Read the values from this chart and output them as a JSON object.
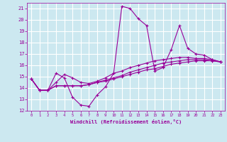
{
  "xlabel": "Windchill (Refroidissement éolien,°C)",
  "ylabel": "",
  "background_color": "#cce8f0",
  "grid_color": "#ffffff",
  "line_color": "#990099",
  "xlim": [
    -0.5,
    23.5
  ],
  "ylim": [
    12,
    21.5
  ],
  "yticks": [
    12,
    13,
    14,
    15,
    16,
    17,
    18,
    19,
    20,
    21
  ],
  "xticks": [
    0,
    1,
    2,
    3,
    4,
    5,
    6,
    7,
    8,
    9,
    10,
    11,
    12,
    13,
    14,
    15,
    16,
    17,
    18,
    19,
    20,
    21,
    22,
    23
  ],
  "series": [
    {
      "x": [
        0,
        1,
        2,
        3,
        4,
        5,
        6,
        7,
        8,
        9,
        10,
        11,
        12,
        13,
        14,
        15,
        16,
        17,
        18,
        19,
        20,
        21,
        22,
        23
      ],
      "y": [
        14.8,
        13.8,
        13.8,
        15.3,
        14.9,
        13.2,
        12.5,
        12.4,
        13.4,
        14.1,
        15.3,
        21.2,
        21.0,
        20.1,
        19.5,
        15.5,
        15.8,
        17.4,
        19.5,
        17.5,
        17.0,
        16.9,
        16.5,
        16.3
      ]
    },
    {
      "x": [
        0,
        1,
        2,
        3,
        4,
        5,
        6,
        7,
        8,
        9,
        10,
        11,
        12,
        13,
        14,
        15,
        16,
        17,
        18,
        19,
        20,
        21,
        22,
        23
      ],
      "y": [
        14.8,
        13.8,
        13.8,
        14.2,
        14.2,
        14.2,
        14.2,
        14.3,
        14.5,
        14.6,
        14.8,
        15.0,
        15.2,
        15.4,
        15.6,
        15.7,
        15.9,
        16.1,
        16.2,
        16.3,
        16.4,
        16.4,
        16.4,
        16.3
      ]
    },
    {
      "x": [
        0,
        1,
        2,
        3,
        4,
        5,
        6,
        7,
        8,
        9,
        10,
        11,
        12,
        13,
        14,
        15,
        16,
        17,
        18,
        19,
        20,
        21,
        22,
        23
      ],
      "y": [
        14.8,
        13.8,
        13.8,
        14.2,
        14.2,
        14.2,
        14.2,
        14.3,
        14.5,
        14.7,
        14.9,
        15.1,
        15.4,
        15.6,
        15.8,
        16.0,
        16.2,
        16.3,
        16.4,
        16.5,
        16.5,
        16.5,
        16.4,
        16.3
      ]
    },
    {
      "x": [
        0,
        1,
        2,
        3,
        4,
        5,
        6,
        7,
        8,
        9,
        10,
        11,
        12,
        13,
        14,
        15,
        16,
        17,
        18,
        19,
        20,
        21,
        22,
        23
      ],
      "y": [
        14.8,
        13.8,
        13.8,
        14.5,
        15.2,
        14.9,
        14.5,
        14.4,
        14.6,
        14.9,
        15.3,
        15.5,
        15.8,
        16.0,
        16.2,
        16.4,
        16.5,
        16.6,
        16.7,
        16.7,
        16.6,
        16.6,
        16.5,
        16.3
      ]
    }
  ]
}
